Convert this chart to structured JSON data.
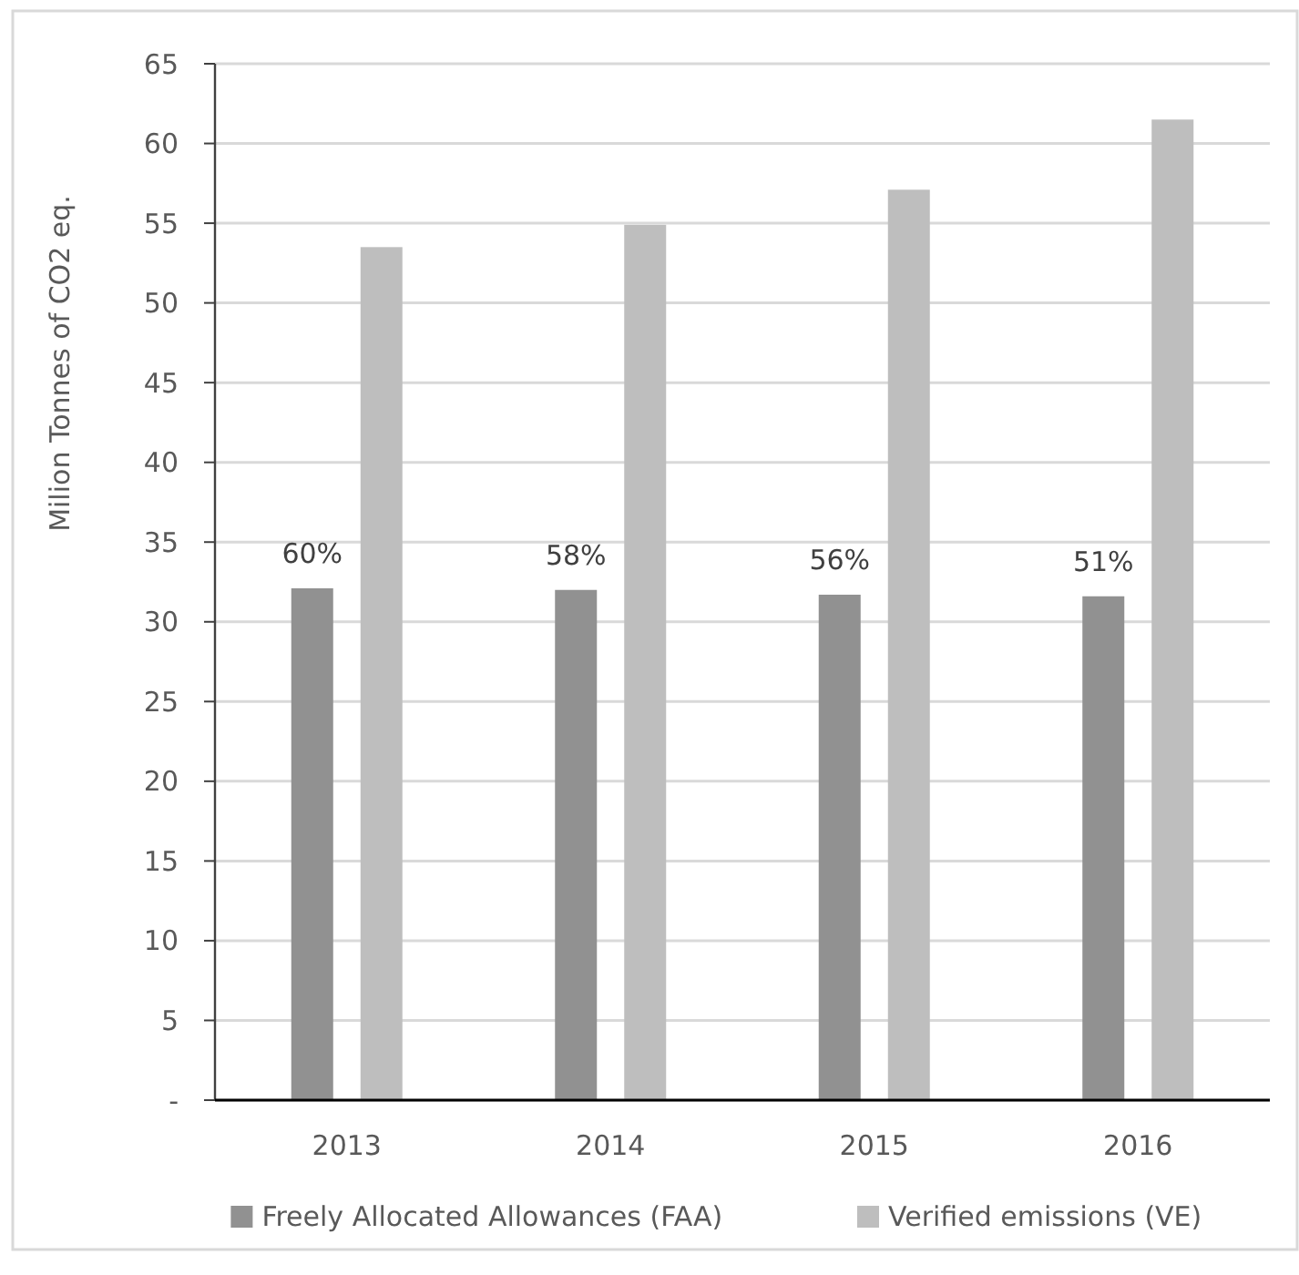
{
  "chart_data": {
    "type": "bar",
    "ylabel": "Milion Tonnes of CO2 eq.",
    "categories": [
      "2013",
      "2014",
      "2015",
      "2016"
    ],
    "series": [
      {
        "name": "Freely Allocated Allowances (FAA)",
        "color": "#919191",
        "values": [
          32.1,
          32.0,
          31.7,
          31.6
        ]
      },
      {
        "name": "Verified emissions (VE)",
        "color": "#bebebe",
        "values": [
          53.5,
          54.9,
          57.1,
          61.5
        ]
      }
    ],
    "ylim": [
      0,
      65
    ],
    "yticks": [
      {
        "value": 0,
        "label": "-"
      },
      5,
      10,
      15,
      20,
      25,
      30,
      35,
      40,
      45,
      50,
      55,
      60,
      65
    ],
    "grid": "y",
    "legend": "bottom",
    "annotations": [
      "60%",
      "58%",
      "56%",
      "51%"
    ]
  }
}
